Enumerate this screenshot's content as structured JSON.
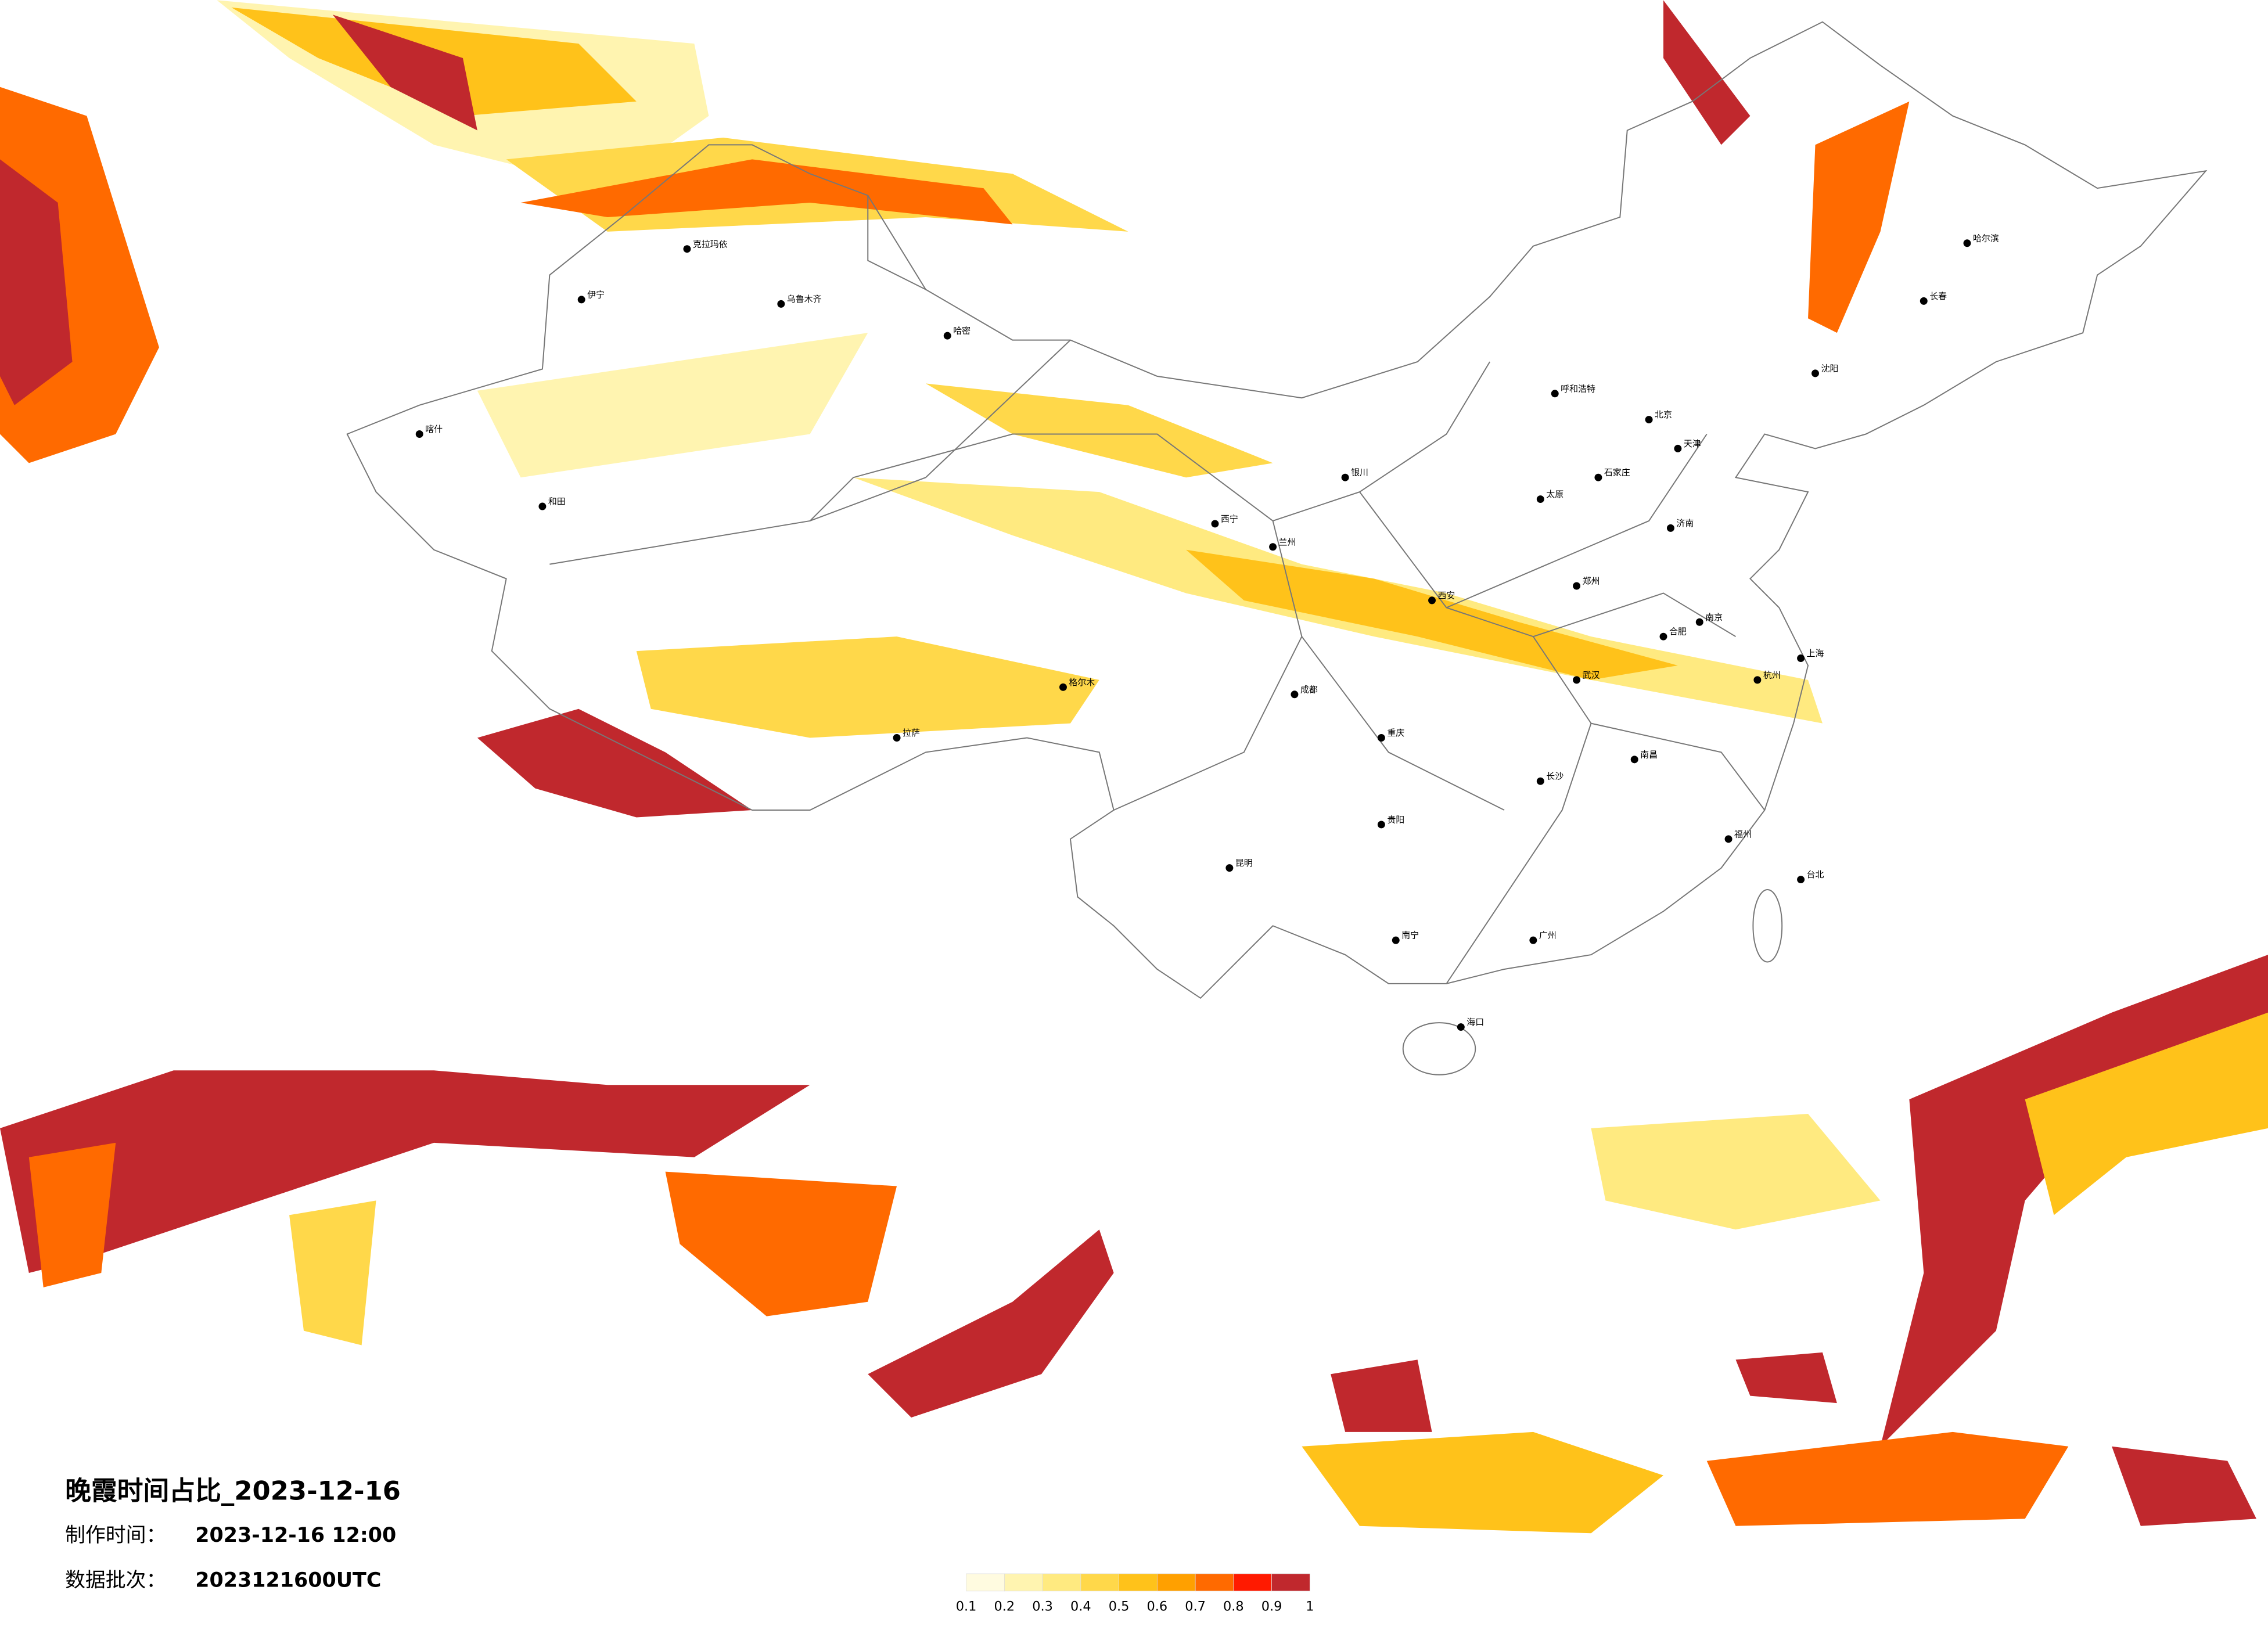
{
  "header": {
    "title": "晚霞时间占比_2023-12-16",
    "made_label": "制作时间：",
    "made_time": "2023-12-16 12:00",
    "batch_label": "数据批次：",
    "batch": "2023121600UTC"
  },
  "legend": {
    "ticks": [
      0.1,
      0.2,
      0.3,
      0.4,
      0.5,
      0.6,
      0.7,
      0.8,
      0.9,
      1
    ],
    "colors": [
      "#fffbe0",
      "#fff4b0",
      "#ffea80",
      "#ffd84a",
      "#ffc21a",
      "#ffa000",
      "#ff6a00",
      "#ff1a00",
      "#c0282d"
    ]
  },
  "cities": [
    "北京",
    "天津",
    "石家庄",
    "太原",
    "呼和浩特",
    "沈阳",
    "长春",
    "哈尔滨",
    "济南",
    "郑州",
    "西安",
    "兰州",
    "西宁",
    "银川",
    "乌鲁木齐",
    "拉萨",
    "成都",
    "重庆",
    "贵阳",
    "昆明",
    "南宁",
    "广州",
    "福州",
    "南昌",
    "长沙",
    "武汉",
    "合肥",
    "南京",
    "杭州",
    "上海",
    "海口",
    "台北",
    "喀什",
    "和田",
    "伊宁",
    "克拉玛依",
    "哈密",
    "格尔木"
  ]
}
